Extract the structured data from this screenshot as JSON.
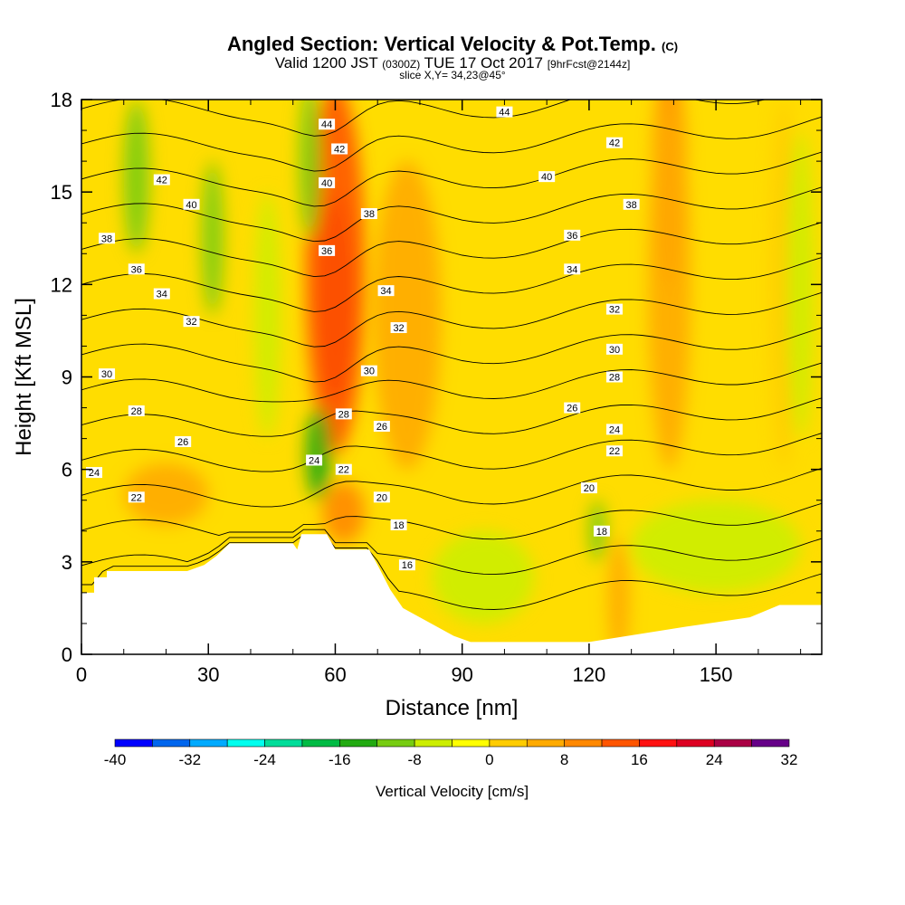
{
  "header": {
    "title_main": "Angled Section: Vertical Velocity & Pot.Temp.",
    "title_unit": "(C)",
    "valid_prefix": "Valid 1200 JST",
    "valid_utc": "(0300Z)",
    "valid_date": "TUE 17 Oct 2017",
    "forecast": "[9hrFcst@2144z]",
    "slice": "slice X,Y= 34,23@45°"
  },
  "chart_data": {
    "type": "heatmap",
    "xlabel": "Distance [nm]",
    "ylabel": "Height [Kft MSL]",
    "xlim": [
      0,
      175
    ],
    "ylim": [
      0,
      18
    ],
    "x_ticks": [
      0,
      30,
      60,
      90,
      120,
      150
    ],
    "y_ticks": [
      0,
      3,
      6,
      9,
      12,
      15,
      18
    ],
    "colorbar": {
      "label": "Vertical Velocity [cm/s]",
      "tick_labels": [
        "-40",
        "-32",
        "-24",
        "-16",
        "-8",
        "0",
        "8",
        "16",
        "24",
        "32"
      ],
      "levels": [
        -40,
        -36,
        -32,
        -28,
        -24,
        -20,
        -16,
        -12,
        -8,
        -4,
        0,
        4,
        8,
        12,
        16,
        20,
        24,
        28,
        32
      ],
      "colors": [
        "#0000ff",
        "#0066ee",
        "#00aaff",
        "#00ffee",
        "#00dd99",
        "#00bb44",
        "#22aa11",
        "#77cc11",
        "#ccee00",
        "#ffff00",
        "#ffcc00",
        "#ffaa00",
        "#ff8800",
        "#ff5500",
        "#ff1111",
        "#dd0022",
        "#aa0044",
        "#660088"
      ]
    },
    "theta_contours": [
      {
        "value": 16,
        "label": "16",
        "lx": 77,
        "ly": 2.9
      },
      {
        "value": 18,
        "label": "18",
        "lx": 75,
        "ly": 4.2,
        "lx2": 123,
        "ly2": 4.0
      },
      {
        "value": 20,
        "label": "20",
        "lx": 71,
        "ly": 5.1,
        "lx2": 120,
        "ly2": 5.4
      },
      {
        "value": 22,
        "label": "22",
        "lx": 13,
        "ly": 5.1,
        "lx2": 62,
        "ly2": 6.0,
        "lx3": 126,
        "ly3": 6.6
      },
      {
        "value": 24,
        "label": "24",
        "lx": 3,
        "ly": 5.9,
        "lx2": 55,
        "ly2": 6.3,
        "lx3": 126,
        "ly3": 7.3
      },
      {
        "value": 26,
        "label": "26",
        "lx": 24,
        "ly": 6.9,
        "lx2": 71,
        "ly2": 7.4,
        "lx3": 116,
        "ly3": 8.0
      },
      {
        "value": 28,
        "label": "28",
        "lx": 13,
        "ly": 7.9,
        "lx2": 62,
        "ly2": 7.8,
        "lx3": 126,
        "ly3": 9.0
      },
      {
        "value": 30,
        "label": "30",
        "lx": 6,
        "ly": 9.1,
        "lx2": 68,
        "ly2": 9.2,
        "lx3": 126,
        "ly3": 9.9
      },
      {
        "value": 32,
        "label": "32",
        "lx": 26,
        "ly": 10.8,
        "lx2": 75,
        "ly2": 10.6,
        "lx3": 126,
        "ly3": 11.2
      },
      {
        "value": 34,
        "label": "34",
        "lx": 19,
        "ly": 11.7,
        "lx2": 72,
        "ly2": 11.8,
        "lx3": 116,
        "ly3": 12.5
      },
      {
        "value": 36,
        "label": "36",
        "lx": 13,
        "ly": 12.5,
        "lx2": 58,
        "ly2": 13.1,
        "lx3": 116,
        "ly3": 13.6
      },
      {
        "value": 38,
        "label": "38",
        "lx": 6,
        "ly": 13.5,
        "lx2": 68,
        "ly2": 14.3,
        "lx3": 130,
        "ly3": 14.6
      },
      {
        "value": 40,
        "label": "40",
        "lx": 26,
        "ly": 14.6,
        "lx2": 58,
        "ly2": 15.3,
        "lx3": 110,
        "ly3": 15.5
      },
      {
        "value": 42,
        "label": "42",
        "lx": 19,
        "ly": 15.4,
        "lx2": 61,
        "ly2": 16.4,
        "lx3": 126,
        "ly3": 16.6
      },
      {
        "value": 44,
        "label": "44",
        "lx": 58,
        "ly": 17.2,
        "lx2": 100,
        "ly2": 17.6
      }
    ],
    "terrain_height_kft": [
      [
        0,
        2.0
      ],
      [
        3,
        2.0
      ],
      [
        3,
        2.5
      ],
      [
        6,
        2.5
      ],
      [
        6,
        2.7
      ],
      [
        13,
        2.7
      ],
      [
        20,
        2.7
      ],
      [
        25,
        2.7
      ],
      [
        29,
        2.9
      ],
      [
        32,
        3.2
      ],
      [
        35,
        3.6
      ],
      [
        50,
        3.6
      ],
      [
        51,
        3.4
      ],
      [
        52,
        3.9
      ],
      [
        58,
        3.9
      ],
      [
        60,
        3.4
      ],
      [
        68,
        3.4
      ],
      [
        70,
        2.9
      ],
      [
        73,
        2.1
      ],
      [
        76,
        1.5
      ],
      [
        80,
        1.2
      ],
      [
        84,
        0.9
      ],
      [
        88,
        0.6
      ],
      [
        92,
        0.4
      ],
      [
        120,
        0.4
      ],
      [
        143,
        0.9
      ],
      [
        158,
        1.2
      ],
      [
        165,
        1.6
      ],
      [
        175,
        1.6
      ]
    ],
    "velocity_features": [
      {
        "desc": "updraft",
        "cx": 60,
        "cy": 11.5,
        "rx": 4,
        "ry": 3.4,
        "value": 22
      },
      {
        "desc": "updraft",
        "cx": 60,
        "cy": 12.5,
        "rx": 7,
        "ry": 6.0,
        "value": 12
      },
      {
        "desc": "updraft",
        "cx": 139,
        "cy": 15.5,
        "rx": 4,
        "ry": 3.5,
        "value": 10
      },
      {
        "desc": "updraft",
        "cx": 139,
        "cy": 12.0,
        "rx": 5,
        "ry": 6.0,
        "value": 4
      },
      {
        "desc": "updraft",
        "cx": 77,
        "cy": 11.0,
        "rx": 8,
        "ry": 5.0,
        "value": 5
      },
      {
        "desc": "updraft",
        "cx": 62,
        "cy": 4.6,
        "rx": 5,
        "ry": 1.0,
        "value": 8
      },
      {
        "desc": "updraft",
        "cx": 20,
        "cy": 5.2,
        "rx": 10,
        "ry": 1.0,
        "value": 5
      },
      {
        "desc": "updraft",
        "cx": 127,
        "cy": 1.8,
        "rx": 2.5,
        "ry": 2.0,
        "value": 6
      },
      {
        "desc": "updraft",
        "cx": 166,
        "cy": 12.0,
        "rx": 3,
        "ry": 6.0,
        "value": 3
      },
      {
        "desc": "downdraft",
        "cx": 54,
        "cy": 16.0,
        "rx": 2.5,
        "ry": 2.5,
        "value": -10
      },
      {
        "desc": "downdraft",
        "cx": 56,
        "cy": 6.5,
        "rx": 3,
        "ry": 1.5,
        "value": -14
      },
      {
        "desc": "downdraft",
        "cx": 13,
        "cy": 15.5,
        "rx": 3,
        "ry": 2.5,
        "value": -9
      },
      {
        "desc": "downdraft",
        "cx": 31,
        "cy": 13.5,
        "rx": 2.5,
        "ry": 2.5,
        "value": -9
      },
      {
        "desc": "downdraft",
        "cx": 44,
        "cy": 11.0,
        "rx": 3,
        "ry": 4.0,
        "value": -6
      },
      {
        "desc": "downdraft",
        "cx": 95,
        "cy": 2.5,
        "rx": 12,
        "ry": 1.5,
        "value": -5
      },
      {
        "desc": "downdraft",
        "cx": 150,
        "cy": 3.5,
        "rx": 20,
        "ry": 1.5,
        "value": -5
      },
      {
        "desc": "downdraft",
        "cx": 122,
        "cy": 4.0,
        "rx": 2,
        "ry": 1.0,
        "value": -10
      },
      {
        "desc": "downdraft",
        "cx": 170,
        "cy": 12.0,
        "rx": 3,
        "ry": 5.0,
        "value": -6
      }
    ]
  }
}
